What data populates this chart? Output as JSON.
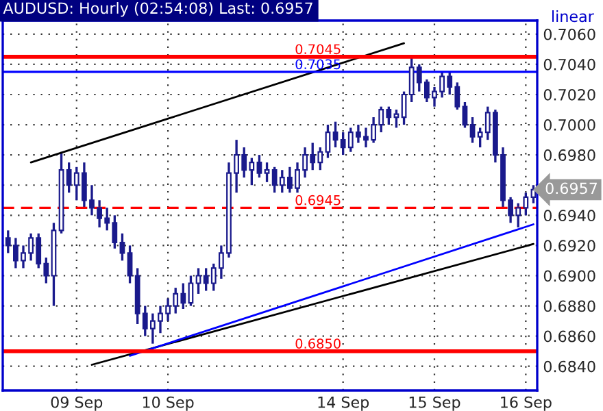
{
  "chart_data": {
    "type": "candlestick",
    "title": "AUDUSD: Hourly (02:54:08) Last: 0.6957",
    "categories": [
      null,
      null,
      null,
      null,
      null,
      null,
      null,
      null,
      null,
      "09 Sep",
      null,
      null,
      null,
      null,
      null,
      null,
      null,
      null,
      null,
      null,
      null,
      "10 Sep",
      null,
      null,
      null,
      null,
      null,
      null,
      null,
      null,
      null,
      null,
      null,
      null,
      null,
      null,
      null,
      null,
      null,
      null,
      null,
      null,
      null,
      null,
      "14 Sep",
      null,
      null,
      null,
      null,
      null,
      null,
      null,
      null,
      null,
      null,
      null,
      "15 Sep",
      null,
      null,
      null,
      null,
      null,
      null,
      null,
      null,
      null,
      null,
      null,
      "16 Sep",
      null
    ],
    "ohlc": [
      [
        0.6925,
        0.693,
        0.6915,
        0.692
      ],
      [
        0.692,
        0.6925,
        0.6905,
        0.691
      ],
      [
        0.691,
        0.692,
        0.6905,
        0.6915
      ],
      [
        0.6915,
        0.6928,
        0.691,
        0.6925
      ],
      [
        0.6925,
        0.6928,
        0.6905,
        0.6908
      ],
      [
        0.6908,
        0.6912,
        0.6895,
        0.69
      ],
      [
        0.69,
        0.6935,
        0.688,
        0.693
      ],
      [
        0.693,
        0.6982,
        0.6928,
        0.697
      ],
      [
        0.697,
        0.6975,
        0.6955,
        0.696
      ],
      [
        0.696,
        0.6972,
        0.695,
        0.6968
      ],
      [
        0.6968,
        0.6975,
        0.6945,
        0.695
      ],
      [
        0.695,
        0.696,
        0.694,
        0.6945
      ],
      [
        0.6945,
        0.695,
        0.6932,
        0.6938
      ],
      [
        0.6938,
        0.6945,
        0.693,
        0.6935
      ],
      [
        0.6935,
        0.694,
        0.6918,
        0.6922
      ],
      [
        0.6922,
        0.6928,
        0.691,
        0.6915
      ],
      [
        0.6915,
        0.692,
        0.6895,
        0.69
      ],
      [
        0.69,
        0.6905,
        0.6868,
        0.6875
      ],
      [
        0.6875,
        0.688,
        0.686,
        0.6865
      ],
      [
        0.6865,
        0.6875,
        0.6855,
        0.687
      ],
      [
        0.687,
        0.688,
        0.6862,
        0.6875
      ],
      [
        0.6875,
        0.6885,
        0.687,
        0.688
      ],
      [
        0.688,
        0.6892,
        0.6875,
        0.6888
      ],
      [
        0.6888,
        0.6895,
        0.6878,
        0.6882
      ],
      [
        0.6882,
        0.69,
        0.688,
        0.6895
      ],
      [
        0.6895,
        0.6905,
        0.6888,
        0.69
      ],
      [
        0.69,
        0.6905,
        0.689,
        0.6895
      ],
      [
        0.6895,
        0.6908,
        0.689,
        0.6905
      ],
      [
        0.6905,
        0.692,
        0.6898,
        0.6915
      ],
      [
        0.6915,
        0.6975,
        0.6912,
        0.6968
      ],
      [
        0.6968,
        0.699,
        0.6955,
        0.698
      ],
      [
        0.698,
        0.6985,
        0.6965,
        0.697
      ],
      [
        0.697,
        0.6978,
        0.696,
        0.6975
      ],
      [
        0.6975,
        0.698,
        0.6965,
        0.6968
      ],
      [
        0.6968,
        0.6975,
        0.6962,
        0.697
      ],
      [
        0.697,
        0.6972,
        0.6955,
        0.696
      ],
      [
        0.696,
        0.697,
        0.6955,
        0.6965
      ],
      [
        0.6965,
        0.6972,
        0.6955,
        0.6958
      ],
      [
        0.6958,
        0.6975,
        0.6955,
        0.697
      ],
      [
        0.697,
        0.6985,
        0.6965,
        0.698
      ],
      [
        0.698,
        0.6988,
        0.697,
        0.6975
      ],
      [
        0.6975,
        0.6985,
        0.697,
        0.6982
      ],
      [
        0.6982,
        0.7,
        0.6978,
        0.6995
      ],
      [
        0.6995,
        0.7002,
        0.6985,
        0.699
      ],
      [
        0.699,
        0.6995,
        0.698,
        0.6985
      ],
      [
        0.6985,
        0.6998,
        0.6982,
        0.6995
      ],
      [
        0.6995,
        0.7,
        0.6988,
        0.6992
      ],
      [
        0.6992,
        0.6998,
        0.6985,
        0.699
      ],
      [
        0.699,
        0.7005,
        0.6988,
        0.7
      ],
      [
        0.7,
        0.7012,
        0.6995,
        0.701
      ],
      [
        0.701,
        0.7012,
        0.7,
        0.7005
      ],
      [
        0.7005,
        0.701,
        0.6998,
        0.7007
      ],
      [
        0.7005,
        0.7022,
        0.7,
        0.702
      ],
      [
        0.702,
        0.7045,
        0.7015,
        0.7038
      ],
      [
        0.7038,
        0.704,
        0.7022,
        0.7028
      ],
      [
        0.7028,
        0.703,
        0.7015,
        0.7018
      ],
      [
        0.7018,
        0.7025,
        0.7012,
        0.7022
      ],
      [
        0.7022,
        0.7035,
        0.7018,
        0.7032
      ],
      [
        0.7032,
        0.7035,
        0.702,
        0.7025
      ],
      [
        0.7025,
        0.7028,
        0.701,
        0.7012
      ],
      [
        0.7012,
        0.7015,
        0.6998,
        0.7
      ],
      [
        0.7,
        0.7005,
        0.6988,
        0.6992
      ],
      [
        0.6992,
        0.6998,
        0.6985,
        0.6995
      ],
      [
        0.6995,
        0.7012,
        0.699,
        0.7008
      ],
      [
        0.7008,
        0.701,
        0.6975,
        0.698
      ],
      [
        0.698,
        0.6985,
        0.6945,
        0.695
      ],
      [
        0.695,
        0.6952,
        0.6935,
        0.694
      ],
      [
        0.694,
        0.6948,
        0.6932,
        0.6945
      ],
      [
        0.6945,
        0.6955,
        0.694,
        0.6952
      ],
      [
        0.6952,
        0.696,
        0.6948,
        0.6957
      ]
    ],
    "color": "#1a1a8c",
    "series": [
      {
        "type": "line",
        "color": "#000000",
        "values": [
          null,
          null,
          null,
          0.6975,
          null,
          null,
          null,
          null,
          null,
          null,
          null,
          null,
          null,
          null,
          null,
          null,
          null,
          null,
          null,
          null,
          null,
          null,
          null,
          null,
          null,
          null,
          null,
          null,
          null,
          null,
          null,
          null,
          null,
          null,
          null,
          null,
          null,
          null,
          null,
          null,
          null,
          null,
          null,
          null,
          null,
          null,
          null,
          null,
          null,
          null,
          null,
          null,
          0.7054,
          null,
          null,
          null,
          null,
          null,
          null,
          null,
          null,
          null,
          null,
          null,
          null,
          null,
          null,
          null,
          null,
          null
        ]
      },
      {
        "type": "line",
        "color": "#000000",
        "values": [
          null,
          null,
          null,
          null,
          null,
          null,
          null,
          null,
          null,
          null,
          null,
          0.6841,
          null,
          null,
          null,
          null,
          null,
          null,
          null,
          null,
          null,
          null,
          null,
          null,
          null,
          null,
          null,
          null,
          null,
          null,
          null,
          null,
          null,
          null,
          null,
          null,
          null,
          null,
          null,
          null,
          null,
          null,
          null,
          null,
          null,
          null,
          null,
          null,
          null,
          null,
          null,
          null,
          null,
          null,
          null,
          null,
          null,
          null,
          null,
          null,
          null,
          null,
          null,
          null,
          null,
          null,
          null,
          null,
          null,
          0.6921
        ]
      },
      {
        "type": "line",
        "color": "#0000ff",
        "values": [
          null,
          null,
          null,
          null,
          null,
          null,
          null,
          null,
          null,
          null,
          null,
          null,
          null,
          null,
          null,
          null,
          0.6847,
          null,
          null,
          null,
          null,
          null,
          null,
          null,
          null,
          null,
          null,
          null,
          null,
          null,
          null,
          null,
          null,
          null,
          null,
          null,
          null,
          null,
          null,
          null,
          null,
          null,
          null,
          null,
          null,
          null,
          null,
          null,
          null,
          null,
          null,
          null,
          null,
          null,
          null,
          null,
          null,
          null,
          null,
          null,
          null,
          null,
          null,
          null,
          null,
          null,
          null,
          null,
          null,
          0.6934
        ]
      }
    ],
    "ylim": [
      0.6824,
      0.7069
    ],
    "yticks": [
      {
        "value": 0.684,
        "label": "0.6840"
      },
      {
        "value": 0.686,
        "label": "0.6860"
      },
      {
        "value": 0.688,
        "label": "0.6880"
      },
      {
        "value": 0.69,
        "label": "0.6900"
      },
      {
        "value": 0.692,
        "label": "0.6920"
      },
      {
        "value": 0.694,
        "label": "0.6940"
      },
      {
        "value": 0.696,
        "label": null
      },
      {
        "value": 0.698,
        "label": "0.6980"
      },
      {
        "value": 0.7,
        "label": "0.7000"
      },
      {
        "value": 0.702,
        "label": "0.7020"
      },
      {
        "value": 0.704,
        "label": "0.7040"
      },
      {
        "value": 0.706,
        "label": "0.7060"
      }
    ],
    "ref_lines": [
      {
        "axis": "y",
        "value": 0.7045,
        "label": "0.7045",
        "color": "#ff0000",
        "line_style": "solid"
      },
      {
        "axis": "y",
        "value": 0.7035,
        "label": "0.7035",
        "color": "#0000ff",
        "line_style": "solid"
      },
      {
        "axis": "y",
        "value": 0.6945,
        "label": "0.6945",
        "color": "#ff0000",
        "line_style": "dashed"
      },
      {
        "axis": "y",
        "value": 0.685,
        "label": "0.6850",
        "color": "#ff0000",
        "line_style": "solid"
      }
    ],
    "annotations": [
      "linear",
      "0.6957"
    ],
    "grid": true
  }
}
